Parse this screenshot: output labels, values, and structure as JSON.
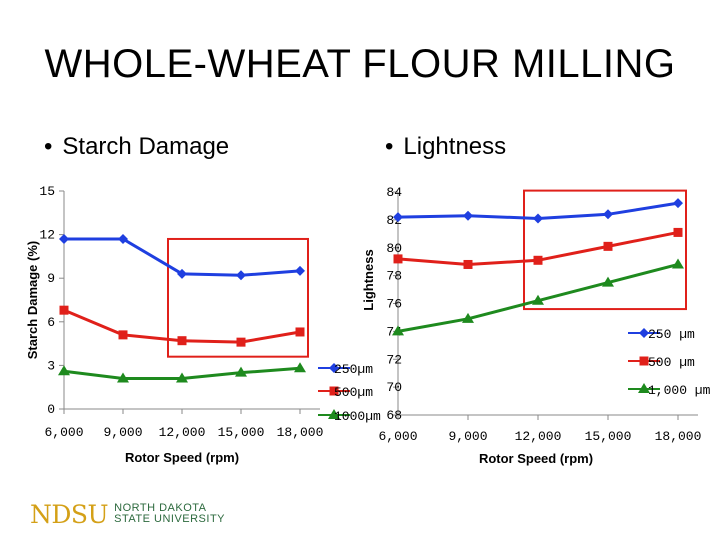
{
  "slide": {
    "title": "WHOLE-WHEAT FLOUR MILLING",
    "bullet_left": "Starch Damage",
    "bullet_right": "Lightness",
    "bullet_symbol": "•"
  },
  "logo": {
    "mark": "NDSU",
    "line1": "NORTH DAKOTA",
    "line2": "STATE UNIVERSITY",
    "mark_color": "#d4a017",
    "text_color": "#2d6a3e"
  },
  "chart_data": [
    {
      "type": "line",
      "title": "",
      "xlabel": "Rotor Speed (rpm)",
      "ylabel": "Starch Damage (%)",
      "x": [
        6000,
        9000,
        12000,
        15000,
        18000
      ],
      "x_tick_labels": [
        "6,000",
        "9,000",
        "12,000",
        "15,000",
        "18,000"
      ],
      "ylim": [
        0,
        15
      ],
      "y_ticks": [
        0,
        3,
        6,
        9,
        12,
        15
      ],
      "y_tick_labels": [
        "0",
        "3",
        "6",
        "9",
        "12",
        "15"
      ],
      "series": [
        {
          "name": "250µm",
          "color": "#1f3fe0",
          "marker": "diamond",
          "values": [
            11.7,
            11.7,
            9.3,
            9.2,
            9.5
          ]
        },
        {
          "name": "500µm",
          "color": "#e0201a",
          "marker": "square",
          "values": [
            6.8,
            5.1,
            4.7,
            4.6,
            5.3
          ]
        },
        {
          "name": "1000µm",
          "color": "#1e8a1e",
          "marker": "triangle",
          "values": [
            2.6,
            2.1,
            2.1,
            2.5,
            2.8
          ]
        }
      ],
      "legend": "right",
      "highlight_box": {
        "x_range": [
          12000,
          18000
        ],
        "y_range": [
          3.6,
          11.7
        ],
        "color": "#e0201a"
      }
    },
    {
      "type": "line",
      "title": "",
      "xlabel": "Rotor Speed (rpm)",
      "ylabel": "Lightness",
      "x": [
        6000,
        9000,
        12000,
        15000,
        18000
      ],
      "x_tick_labels": [
        "6,000",
        "9,000",
        "12,000",
        "15,000",
        "18,000"
      ],
      "ylim": [
        68,
        84
      ],
      "y_ticks": [
        68,
        70,
        72,
        74,
        76,
        78,
        80,
        82,
        84
      ],
      "y_tick_labels": [
        "68",
        "70",
        "72",
        "74",
        "76",
        "78",
        "80",
        "82",
        "84"
      ],
      "series": [
        {
          "name": "250 µm",
          "color": "#1f3fe0",
          "marker": "diamond",
          "values": [
            82.2,
            82.3,
            82.1,
            82.4,
            83.2
          ]
        },
        {
          "name": "500 µm",
          "color": "#e0201a",
          "marker": "square",
          "values": [
            79.2,
            78.8,
            79.1,
            80.1,
            81.1
          ]
        },
        {
          "name": "1,000 µm",
          "color": "#1e8a1e",
          "marker": "triangle",
          "values": [
            74.0,
            74.9,
            76.2,
            77.5,
            78.8
          ]
        }
      ],
      "legend": "right",
      "highlight_box": {
        "x_range": [
          12000,
          18000
        ],
        "y_range": [
          75.6,
          84.1
        ],
        "color": "#e0201a"
      }
    }
  ]
}
